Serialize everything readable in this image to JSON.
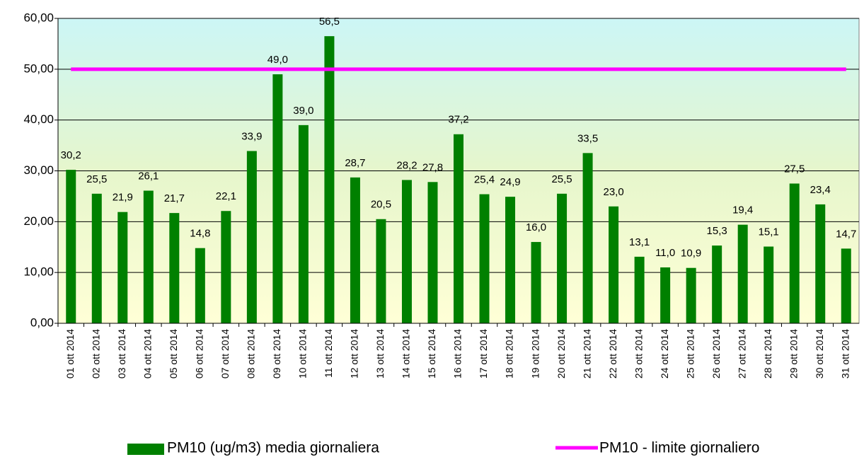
{
  "chart_data": {
    "type": "bar",
    "categories": [
      "01 ott 2014",
      "02 ott 2014",
      "03 ott 2014",
      "04 ott 2014",
      "05 ott 2014",
      "06 ott 2014",
      "07 ott 2014",
      "08 ott 2014",
      "09 ott 2014",
      "10 ott 2014",
      "11 ott 2014",
      "12 ott 2014",
      "13 ott 2014",
      "14 ott 2014",
      "15 ott 2014",
      "16 ott 2014",
      "17 ott 2014",
      "18 ott 2014",
      "19 ott 2014",
      "20 ott 2014",
      "21 ott 2014",
      "22 ott 2014",
      "23 ott 2014",
      "24 ott 2014",
      "25 ott 2014",
      "26 ott 2014",
      "27 ott 2014",
      "28 ott 2014",
      "29 ott 2014",
      "30 ott 2014",
      "31 ott 2014"
    ],
    "series": [
      {
        "name": "PM10 (ug/m3) media giornaliera",
        "type": "bar",
        "color": "#008000",
        "values": [
          30.2,
          25.5,
          21.9,
          26.1,
          21.7,
          14.8,
          22.1,
          33.9,
          49.0,
          39.0,
          56.5,
          28.7,
          20.5,
          28.2,
          27.8,
          37.2,
          25.4,
          24.9,
          16.0,
          25.5,
          33.5,
          23.0,
          13.1,
          11.0,
          10.9,
          15.3,
          19.4,
          15.1,
          27.5,
          23.4,
          14.7
        ],
        "value_labels": [
          "30,2",
          "25,5",
          "21,9",
          "26,1",
          "21,7",
          "14,8",
          "22,1",
          "33,9",
          "49,0",
          "39,0",
          "56,5",
          "28,7",
          "20,5",
          "28,2",
          "27,8",
          "37,2",
          "25,4",
          "24,9",
          "16,0",
          "25,5",
          "33,5",
          "23,0",
          "13,1",
          "11,0",
          "10,9",
          "15,3",
          "19,4",
          "15,1",
          "27,5",
          "23,4",
          "14,7"
        ]
      },
      {
        "name": "PM10 - limite giornaliero",
        "type": "line",
        "color": "#ff00ff",
        "values": [
          50,
          50,
          50,
          50,
          50,
          50,
          50,
          50,
          50,
          50,
          50,
          50,
          50,
          50,
          50,
          50,
          50,
          50,
          50,
          50,
          50,
          50,
          50,
          50,
          50,
          50,
          50,
          50,
          50,
          50,
          50
        ]
      }
    ],
    "ylim": [
      0,
      60
    ],
    "yticks": [
      {
        "value": 0,
        "label": "0,00"
      },
      {
        "value": 10,
        "label": "10,00"
      },
      {
        "value": 20,
        "label": "20,00"
      },
      {
        "value": 30,
        "label": "30,00"
      },
      {
        "value": 40,
        "label": "40,00"
      },
      {
        "value": 50,
        "label": "50,00"
      },
      {
        "value": 60,
        "label": "60,00"
      }
    ],
    "grid": true,
    "legend": "bottom"
  }
}
